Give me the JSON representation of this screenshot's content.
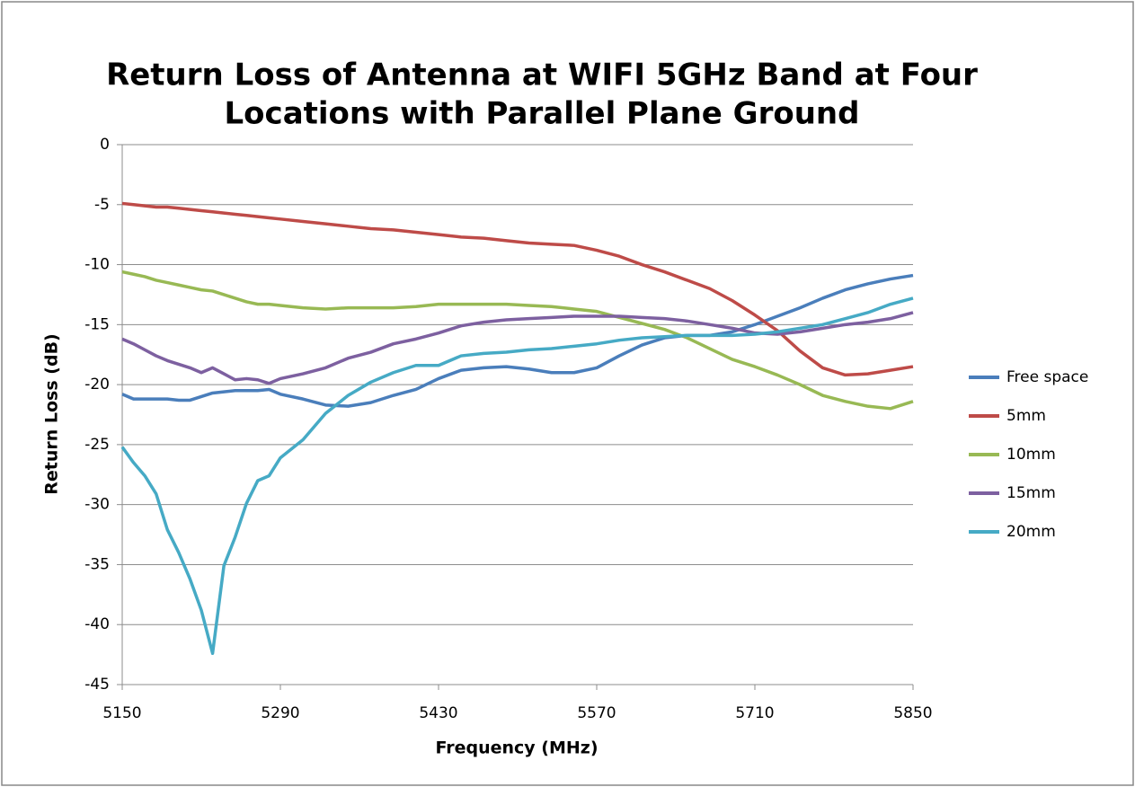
{
  "chart_data": {
    "type": "line",
    "title": [
      "Return Loss of Antenna at WIFI 5GHz Band at Four",
      "Locations with Parallel Plane Ground"
    ],
    "x_label": "Frequency (MHz)",
    "y_label": "Return Loss (dB)",
    "x": [
      5150,
      5160,
      5170,
      5180,
      5190,
      5200,
      5210,
      5220,
      5230,
      5240,
      5250,
      5260,
      5270,
      5280,
      5290,
      5310,
      5330,
      5350,
      5370,
      5390,
      5410,
      5430,
      5450,
      5470,
      5490,
      5510,
      5530,
      5550,
      5570,
      5590,
      5610,
      5630,
      5650,
      5670,
      5690,
      5710,
      5730,
      5750,
      5770,
      5790,
      5810,
      5830,
      5850
    ],
    "series": [
      {
        "name": "Free space",
        "color": "#4a7ebb",
        "values": [
          -20.8,
          -21.2,
          -21.2,
          -21.2,
          -21.2,
          -21.3,
          -21.3,
          -21.0,
          -20.7,
          -20.6,
          -20.5,
          -20.5,
          -20.5,
          -20.4,
          -20.8,
          -21.2,
          -21.7,
          -21.8,
          -21.5,
          -20.9,
          -20.4,
          -19.5,
          -18.8,
          -18.6,
          -18.5,
          -18.7,
          -19.0,
          -19.0,
          -18.6,
          -17.6,
          -16.7,
          -16.1,
          -15.9,
          -15.9,
          -15.6,
          -15.0,
          -14.3,
          -13.6,
          -12.8,
          -12.1,
          -11.6,
          -11.2,
          -10.9
        ]
      },
      {
        "name": "5mm",
        "color": "#be4b48",
        "values": [
          -4.9,
          -5.0,
          -5.1,
          -5.2,
          -5.2,
          -5.3,
          -5.4,
          -5.5,
          -5.6,
          -5.7,
          -5.8,
          -5.9,
          -6.0,
          -6.1,
          -6.2,
          -6.4,
          -6.6,
          -6.8,
          -7.0,
          -7.1,
          -7.3,
          -7.5,
          -7.7,
          -7.8,
          -8.0,
          -8.2,
          -8.3,
          -8.4,
          -8.8,
          -9.3,
          -10.0,
          -10.6,
          -11.3,
          -12.0,
          -13.0,
          -14.2,
          -15.5,
          -17.2,
          -18.6,
          -19.2,
          -19.1,
          -18.8,
          -18.5
        ]
      },
      {
        "name": "10mm",
        "color": "#98b954",
        "values": [
          -10.6,
          -10.8,
          -11.0,
          -11.3,
          -11.5,
          -11.7,
          -11.9,
          -12.1,
          -12.2,
          -12.5,
          -12.8,
          -13.1,
          -13.3,
          -13.3,
          -13.4,
          -13.6,
          -13.7,
          -13.6,
          -13.6,
          -13.6,
          -13.5,
          -13.3,
          -13.3,
          -13.3,
          -13.3,
          -13.4,
          -13.5,
          -13.7,
          -13.9,
          -14.4,
          -14.9,
          -15.4,
          -16.1,
          -17.0,
          -17.9,
          -18.5,
          -19.2,
          -20.0,
          -20.9,
          -21.4,
          -21.8,
          -22.0,
          -21.4
        ]
      },
      {
        "name": "15mm",
        "color": "#7d60a0",
        "values": [
          -16.2,
          -16.6,
          -17.1,
          -17.6,
          -18.0,
          -18.3,
          -18.6,
          -19.0,
          -18.6,
          -19.1,
          -19.6,
          -19.5,
          -19.6,
          -19.9,
          -19.5,
          -19.1,
          -18.6,
          -17.8,
          -17.3,
          -16.6,
          -16.2,
          -15.7,
          -15.1,
          -14.8,
          -14.6,
          -14.5,
          -14.4,
          -14.3,
          -14.3,
          -14.3,
          -14.4,
          -14.5,
          -14.7,
          -15.0,
          -15.3,
          -15.7,
          -15.8,
          -15.6,
          -15.3,
          -15.0,
          -14.8,
          -14.5,
          -14.0
        ]
      },
      {
        "name": "20mm",
        "color": "#46aac5",
        "values": [
          -25.2,
          -26.5,
          -27.6,
          -29.1,
          -32.1,
          -34.0,
          -36.2,
          -38.8,
          -42.4,
          -35.1,
          -32.7,
          -29.9,
          -28.0,
          -27.6,
          -26.1,
          -24.6,
          -22.4,
          -20.9,
          -19.8,
          -19.0,
          -18.4,
          -18.4,
          -17.6,
          -17.4,
          -17.3,
          -17.1,
          -17.0,
          -16.8,
          -16.6,
          -16.3,
          -16.1,
          -16.0,
          -15.9,
          -15.9,
          -15.9,
          -15.8,
          -15.6,
          -15.3,
          -15.0,
          -14.5,
          -14.0,
          -13.3,
          -12.8
        ]
      }
    ],
    "xlim": [
      5150,
      5850
    ],
    "xticks": [
      5150,
      5290,
      5430,
      5570,
      5710,
      5850
    ],
    "ylim": [
      -45,
      0
    ],
    "yticks": [
      0,
      -5,
      -10,
      -15,
      -20,
      -25,
      -30,
      -35,
      -40,
      -45
    ],
    "grid": true,
    "legend": "right"
  }
}
